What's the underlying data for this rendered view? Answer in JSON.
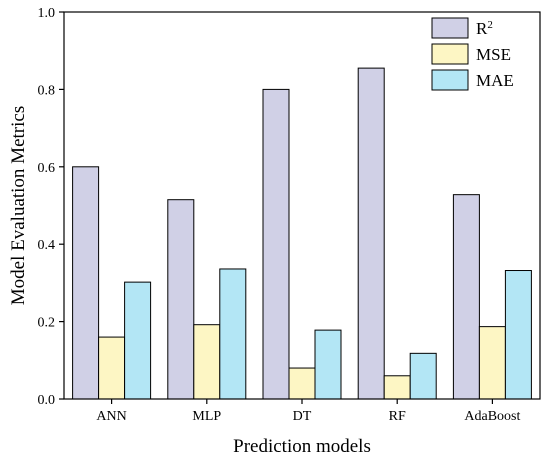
{
  "chart_data": {
    "type": "bar",
    "title": "",
    "xlabel": "Prediction models",
    "ylabel": "Model Evaluation Metrics",
    "categories": [
      "ANN",
      "MLP",
      "DT",
      "RF",
      "AdaBoost"
    ],
    "ylim": [
      0,
      1.0
    ],
    "yticks": [
      "0.0",
      "0.2",
      "0.4",
      "0.6",
      "0.8",
      "1.0"
    ],
    "grid": false,
    "legend_position": "top-right",
    "series": [
      {
        "name": "R",
        "name_sup": "2",
        "color": "#d0d0e6",
        "values": [
          0.6,
          0.515,
          0.8,
          0.855,
          0.528
        ]
      },
      {
        "name": "MSE",
        "color": "#fdf6c4",
        "values": [
          0.16,
          0.192,
          0.08,
          0.06,
          0.187
        ]
      },
      {
        "name": "MAE",
        "color": "#b3e6f5",
        "values": [
          0.302,
          0.336,
          0.178,
          0.118,
          0.332
        ]
      }
    ]
  }
}
